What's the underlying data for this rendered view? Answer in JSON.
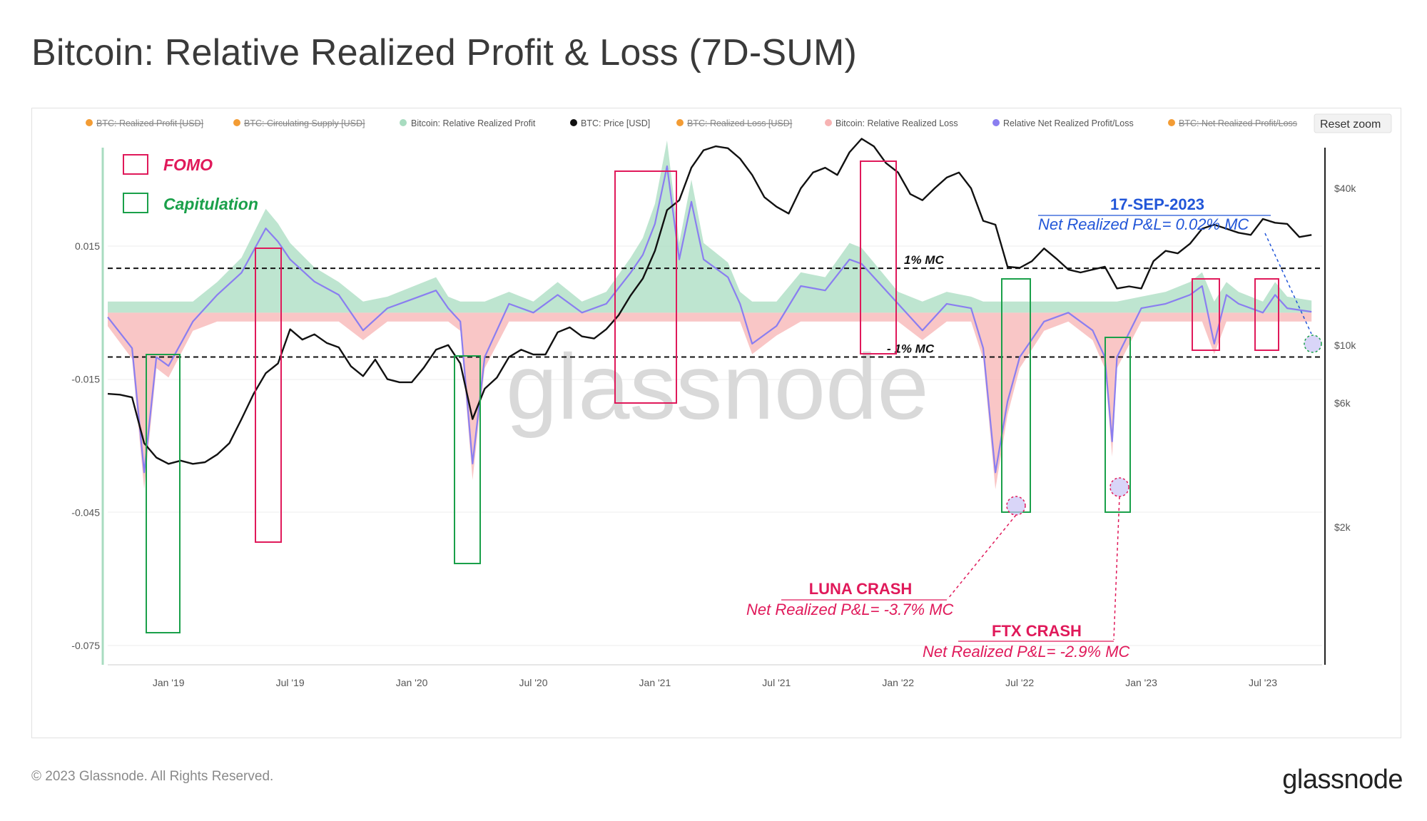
{
  "page": {
    "title": "Bitcoin: Relative Realized Profit & Loss (7D-SUM)",
    "copyright": "© 2023 Glassnode. All Rights Reserved.",
    "brand": "glassnode",
    "watermark": "glassnode"
  },
  "toolbar": {
    "reset_zoom_label": "Reset zoom"
  },
  "chart_data": {
    "type": "area",
    "title": "Bitcoin: Relative Realized Profit & Loss (7D-SUM)",
    "legend_position": "top",
    "legend": [
      {
        "label": "BTC: Realized Profit [USD]",
        "color": "#f39c34",
        "visible": false
      },
      {
        "label": "BTC: Circulating Supply [USD]",
        "color": "#f39c34",
        "visible": false
      },
      {
        "label": "Bitcoin: Relative Realized Profit",
        "color": "#a8dcc0",
        "visible": true
      },
      {
        "label": "BTC: Price [USD]",
        "color": "#111111",
        "visible": true
      },
      {
        "label": "BTC: Realized Loss [USD]",
        "color": "#f39c34",
        "visible": false
      },
      {
        "label": "Bitcoin: Relative Realized Loss",
        "color": "#f7b3b3",
        "visible": true
      },
      {
        "label": "Relative Net Realized Profit/Loss",
        "color": "#8a7ef0",
        "visible": true
      },
      {
        "label": "BTC: Net Realized Profit/Loss",
        "color": "#f39c34",
        "visible": false
      }
    ],
    "x_ticks": [
      "Jan '19",
      "Jul '19",
      "Jan '20",
      "Jul '20",
      "Jan '21",
      "Jul '21",
      "Jan '22",
      "Jul '22",
      "Jan '23",
      "Jul '23"
    ],
    "x_range": [
      "2018-10",
      "2023-09"
    ],
    "y_left": {
      "ticks": [
        "0.015",
        "-0.015",
        "-0.045",
        "-0.075"
      ],
      "tick_values": [
        0.015,
        -0.015,
        -0.045,
        -0.075
      ],
      "range": [
        -0.075,
        0.025
      ]
    },
    "y_right": {
      "ticks": [
        "$40k",
        "$10k",
        "$6k",
        "$2k"
      ],
      "tick_values": [
        40000,
        10000,
        6000,
        2000
      ],
      "scale": "log",
      "range": [
        2000,
        90000
      ]
    },
    "grid": true,
    "reference_lines": [
      {
        "label": "1% MC",
        "value": 0.01,
        "color": "#111111",
        "style": "dashed"
      },
      {
        "label": "- 1% MC",
        "value": -0.01,
        "color": "#111111",
        "style": "dashed"
      }
    ],
    "series": [
      {
        "name": "BTC: Price [USD]",
        "color": "#111111",
        "axis": "right",
        "x": [
          2018.75,
          2018.8,
          2018.85,
          2018.9,
          2018.95,
          2019.0,
          2019.05,
          2019.1,
          2019.15,
          2019.2,
          2019.25,
          2019.3,
          2019.35,
          2019.4,
          2019.45,
          2019.5,
          2019.55,
          2019.6,
          2019.65,
          2019.7,
          2019.75,
          2019.8,
          2019.85,
          2019.9,
          2019.95,
          2020.0,
          2020.05,
          2020.1,
          2020.15,
          2020.2,
          2020.25,
          2020.3,
          2020.35,
          2020.4,
          2020.45,
          2020.5,
          2020.55,
          2020.6,
          2020.65,
          2020.7,
          2020.75,
          2020.8,
          2020.85,
          2020.9,
          2020.95,
          2021.0,
          2021.05,
          2021.1,
          2021.15,
          2021.2,
          2021.25,
          2021.3,
          2021.35,
          2021.4,
          2021.45,
          2021.5,
          2021.55,
          2021.6,
          2021.65,
          2021.7,
          2021.75,
          2021.8,
          2021.85,
          2021.9,
          2021.95,
          2022.0,
          2022.05,
          2022.1,
          2022.15,
          2022.2,
          2022.25,
          2022.3,
          2022.35,
          2022.4,
          2022.45,
          2022.5,
          2022.55,
          2022.6,
          2022.65,
          2022.7,
          2022.75,
          2022.8,
          2022.85,
          2022.9,
          2022.95,
          2023.0,
          2023.05,
          2023.1,
          2023.15,
          2023.2,
          2023.25,
          2023.3,
          2023.35,
          2023.4,
          2023.45,
          2023.5,
          2023.55,
          2023.6,
          2023.65,
          2023.7
        ],
        "values": [
          6500,
          6450,
          6300,
          4200,
          3700,
          3500,
          3600,
          3500,
          3550,
          3800,
          4200,
          5200,
          6500,
          7800,
          8500,
          11500,
          10500,
          11000,
          10200,
          9800,
          8300,
          7600,
          8800,
          7400,
          7200,
          7200,
          8200,
          9600,
          10000,
          8500,
          5200,
          6800,
          7500,
          9000,
          9600,
          9200,
          9200,
          11200,
          11700,
          10800,
          10600,
          11500,
          13000,
          15500,
          18000,
          23000,
          33000,
          36000,
          48000,
          56000,
          58000,
          57000,
          52000,
          45000,
          37000,
          34000,
          32000,
          40000,
          46000,
          48000,
          45000,
          55000,
          62000,
          58000,
          50000,
          46000,
          38000,
          36000,
          40000,
          44000,
          46000,
          40000,
          30000,
          29000,
          20000,
          19800,
          21000,
          23500,
          21500,
          19500,
          19000,
          19500,
          20000,
          16500,
          16800,
          16500,
          21000,
          23000,
          22500,
          24500,
          28000,
          29000,
          28000,
          27000,
          26500,
          30500,
          29500,
          29200,
          26000,
          26500
        ]
      },
      {
        "name": "Relative Net Realized Profit/Loss",
        "color": "#8a7ef0",
        "axis": "left",
        "x": [
          2018.75,
          2018.85,
          2018.9,
          2018.95,
          2019.0,
          2019.1,
          2019.2,
          2019.3,
          2019.4,
          2019.45,
          2019.5,
          2019.6,
          2019.7,
          2019.8,
          2019.9,
          2020.0,
          2020.1,
          2020.15,
          2020.2,
          2020.25,
          2020.3,
          2020.4,
          2020.5,
          2020.6,
          2020.7,
          2020.8,
          2020.9,
          2020.95,
          2021.0,
          2021.05,
          2021.1,
          2021.15,
          2021.2,
          2021.3,
          2021.35,
          2021.4,
          2021.5,
          2021.6,
          2021.7,
          2021.8,
          2021.85,
          2021.9,
          2022.0,
          2022.1,
          2022.2,
          2022.3,
          2022.35,
          2022.4,
          2022.45,
          2022.5,
          2022.6,
          2022.7,
          2022.8,
          2022.85,
          2022.88,
          2022.9,
          2023.0,
          2023.1,
          2023.2,
          2023.25,
          2023.3,
          2023.35,
          2023.4,
          2023.5,
          2023.55,
          2023.6,
          2023.7
        ],
        "values": [
          -0.001,
          -0.008,
          -0.036,
          -0.01,
          -0.012,
          -0.002,
          0.004,
          0.009,
          0.019,
          0.016,
          0.012,
          0.007,
          0.004,
          -0.004,
          0.001,
          0.003,
          0.005,
          0.001,
          -0.002,
          -0.034,
          -0.01,
          0.002,
          0.0,
          0.004,
          0.0,
          0.002,
          0.009,
          0.013,
          0.02,
          0.033,
          0.012,
          0.025,
          0.012,
          0.008,
          0.002,
          -0.007,
          -0.003,
          0.006,
          0.005,
          0.012,
          0.011,
          0.008,
          0.002,
          -0.004,
          0.002,
          0.001,
          -0.008,
          -0.036,
          -0.02,
          -0.01,
          -0.002,
          0.0,
          -0.004,
          -0.01,
          -0.029,
          -0.01,
          0.001,
          0.002,
          0.004,
          0.006,
          -0.007,
          0.004,
          0.002,
          0.0,
          0.004,
          0.001,
          0.0002
        ]
      }
    ],
    "annotations": [
      {
        "title": "17-SEP-2023",
        "text": "Net Realized P&L= 0.02% MC",
        "color": "#2256d8"
      },
      {
        "title": "LUNA CRASH",
        "text": "Net Realized P&L= -3.7% MC",
        "color": "#e0195a"
      },
      {
        "title": "FTX CRASH",
        "text": "Net Realized P&L= -2.9% MC",
        "color": "#e0195a"
      }
    ],
    "highlight_key": [
      {
        "label": "FOMO",
        "color": "#e0195a"
      },
      {
        "label": "Capitulation",
        "color": "#1aa04a"
      }
    ]
  }
}
